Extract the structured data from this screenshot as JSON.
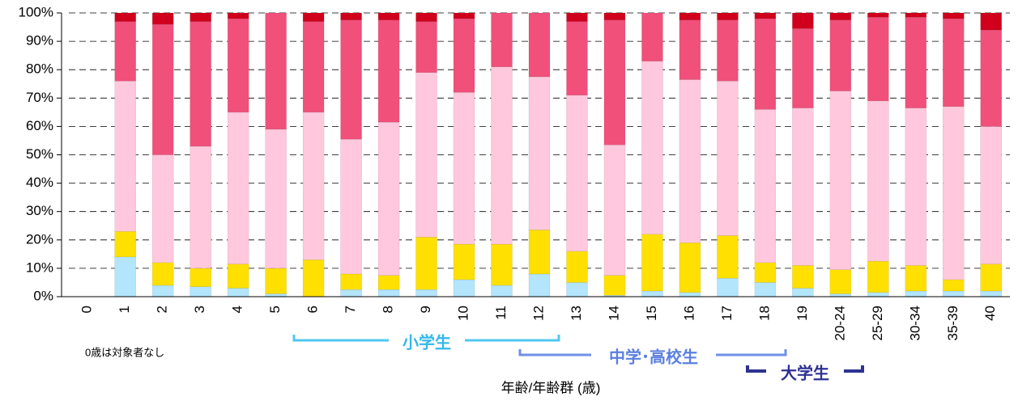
{
  "chart_data": {
    "type": "stacked_bar",
    "x_label": "年齢/年齢群 (歳)",
    "annotations": [
      "0歳は対象者なし",
      "小学生",
      "中学･高校生",
      "大学生"
    ],
    "categories": [
      "0",
      "1",
      "2",
      "3",
      "4",
      "5",
      "6",
      "7",
      "8",
      "9",
      "10",
      "11",
      "12",
      "13",
      "14",
      "15",
      "16",
      "17",
      "18",
      "19",
      "20-24",
      "25-29",
      "30-34",
      "35-39",
      "40"
    ],
    "series": [
      {
        "color": "#b3e5fc",
        "values": [
          null,
          14,
          4,
          3.5,
          3,
          1,
          0,
          2.5,
          2.5,
          2.5,
          6,
          4,
          8,
          5,
          0.5,
          2,
          1.5,
          6.5,
          5,
          3,
          1,
          1.5,
          2,
          2,
          2
        ]
      },
      {
        "color": "#ffe000",
        "values": [
          null,
          9,
          8,
          6.5,
          8.5,
          9,
          13,
          5.5,
          5,
          18.5,
          12.5,
          14.5,
          15.5,
          11,
          7,
          20,
          17.5,
          15,
          7,
          8,
          8.5,
          11,
          9,
          4,
          9.5
        ]
      },
      {
        "color": "#ffc8dc",
        "values": [
          null,
          53,
          38,
          43,
          53.5,
          49,
          52,
          47.5,
          54,
          58,
          53.5,
          62.5,
          54,
          55,
          46,
          61,
          57.5,
          54.5,
          54,
          55.5,
          63,
          56.5,
          55.5,
          61,
          48.5
        ]
      },
      {
        "color": "#f0507a",
        "values": [
          null,
          21,
          46,
          44,
          33,
          41,
          32,
          42,
          36,
          18,
          26,
          19,
          22.5,
          26,
          44,
          17,
          21,
          21.5,
          32,
          28,
          25,
          29.5,
          32,
          31,
          34
        ]
      },
      {
        "color": "#d0001c",
        "values": [
          null,
          3,
          4,
          3,
          2,
          0,
          3,
          2.5,
          2.5,
          3,
          2,
          0,
          0,
          3,
          2.5,
          0,
          2.5,
          2.5,
          2,
          5.5,
          2.5,
          1.5,
          1.5,
          2,
          6
        ]
      }
    ],
    "ylim": [
      0,
      100
    ],
    "yticks": [
      {
        "value": 0,
        "label": "0%"
      },
      {
        "value": 10,
        "label": "10%"
      },
      {
        "value": 20,
        "label": "20%"
      },
      {
        "value": 30,
        "label": "30%"
      },
      {
        "value": 40,
        "label": "40%"
      },
      {
        "value": 50,
        "label": "50%"
      },
      {
        "value": 60,
        "label": "60%"
      },
      {
        "value": 70,
        "label": "70%"
      },
      {
        "value": 80,
        "label": "80%"
      },
      {
        "value": 90,
        "label": "90%"
      },
      {
        "value": 100,
        "label": "100%"
      }
    ],
    "grid": true
  }
}
